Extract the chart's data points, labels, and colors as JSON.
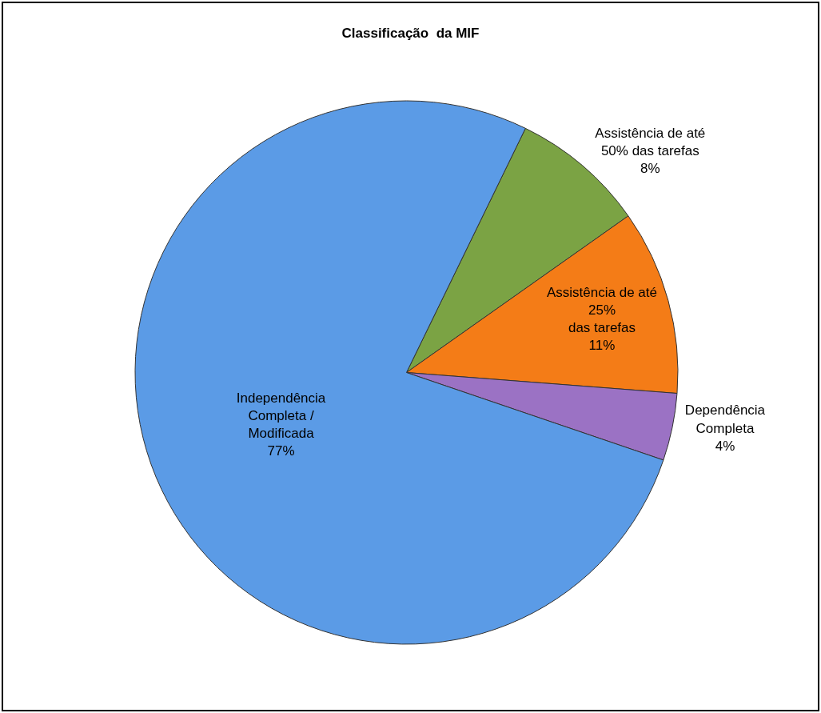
{
  "chart_data": {
    "type": "pie",
    "title": "Classificação  da MIF",
    "categories": [
      "Assistência de até\n50% das tarefas",
      "Assistência de até\n25%\ndas tarefas",
      "Dependência\nCompleta",
      "Independência\nCompleta /\nModificada"
    ],
    "values": [
      8,
      11,
      4,
      77
    ],
    "value_labels": [
      "8%",
      "11%",
      "4%",
      "77%"
    ],
    "colors": [
      "#7ba344",
      "#f47c17",
      "#9b72c4",
      "#5b9be6"
    ],
    "legend": false
  }
}
